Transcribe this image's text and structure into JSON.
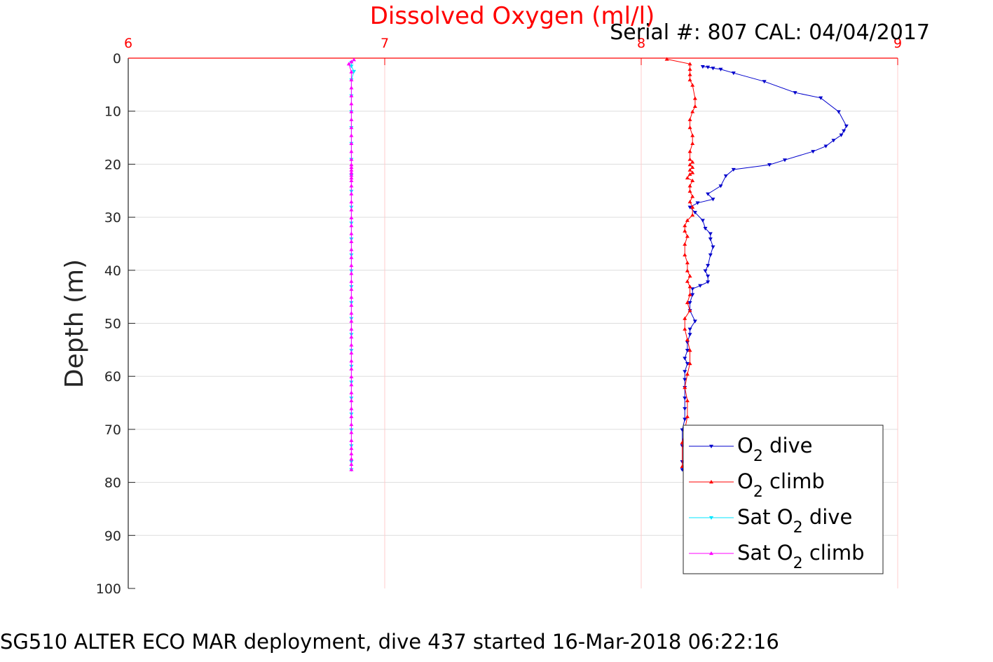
{
  "chart_data": {
    "type": "line",
    "title": "Dissolved Oxygen (ml/l)",
    "subtitle": "Serial #: 807  CAL: 04/04/2017",
    "ylabel": "Depth (m)",
    "footer": "SG510 ALTER ECO MAR deployment, dive 437 started 16-Mar-2018 06:22:16",
    "xlim": [
      6,
      9
    ],
    "ylim": [
      0,
      100
    ],
    "y_reversed": true,
    "x_axis_position": "top",
    "grid": true,
    "legend_position": "bottom-right",
    "xticks": [
      "6",
      "7",
      "8",
      "9"
    ],
    "yticks": [
      "0",
      "10",
      "20",
      "30",
      "40",
      "50",
      "60",
      "70",
      "80",
      "90",
      "100"
    ],
    "colors": {
      "title": "#ff0000",
      "x_axis": "#ff0000",
      "x_grid": "#ffcccc",
      "y_grid": "#dddddd",
      "text": "#262626"
    },
    "series": [
      {
        "name": "O2 dive",
        "legend": {
          "base": "O",
          "sub": "2",
          "post": " dive"
        },
        "color": "#0000cc",
        "marker": "triangle-down",
        "points": [
          [
            8.24,
            1.6
          ],
          [
            8.26,
            1.7
          ],
          [
            8.28,
            1.9
          ],
          [
            8.31,
            2.1
          ],
          [
            8.36,
            2.8
          ],
          [
            8.48,
            4.4
          ],
          [
            8.6,
            6.5
          ],
          [
            8.7,
            7.5
          ],
          [
            8.77,
            10.1
          ],
          [
            8.8,
            12.8
          ],
          [
            8.79,
            13.7
          ],
          [
            8.78,
            14.5
          ],
          [
            8.75,
            15.5
          ],
          [
            8.72,
            16.6
          ],
          [
            8.67,
            17.6
          ],
          [
            8.56,
            19.2
          ],
          [
            8.5,
            20.1
          ],
          [
            8.36,
            21.0
          ],
          [
            8.33,
            22.2
          ],
          [
            8.31,
            24.1
          ],
          [
            8.26,
            25.6
          ],
          [
            8.28,
            26.6
          ],
          [
            8.22,
            27.3
          ],
          [
            8.19,
            28.1
          ],
          [
            8.21,
            29.1
          ],
          [
            8.24,
            30.6
          ],
          [
            8.25,
            32.1
          ],
          [
            8.27,
            33.1
          ],
          [
            8.27,
            34.1
          ],
          [
            8.28,
            35.6
          ],
          [
            8.27,
            37.1
          ],
          [
            8.26,
            39.1
          ],
          [
            8.25,
            40.1
          ],
          [
            8.26,
            41.1
          ],
          [
            8.26,
            42.2
          ],
          [
            8.23,
            42.9
          ],
          [
            8.2,
            43.5
          ],
          [
            8.2,
            44.6
          ],
          [
            8.19,
            46.1
          ],
          [
            8.19,
            47.6
          ],
          [
            8.21,
            49.6
          ],
          [
            8.19,
            51.1
          ],
          [
            8.19,
            52.1
          ],
          [
            8.18,
            53.6
          ],
          [
            8.18,
            55.1
          ],
          [
            8.17,
            56.6
          ],
          [
            8.18,
            57.6
          ],
          [
            8.17,
            59.1
          ],
          [
            8.17,
            60.6
          ],
          [
            8.17,
            62.1
          ],
          [
            8.17,
            64.1
          ],
          [
            8.17,
            66.1
          ],
          [
            8.17,
            68.1
          ],
          [
            8.16,
            70.1
          ],
          [
            8.16,
            73.1
          ],
          [
            8.16,
            76.1
          ],
          [
            8.16,
            77.6
          ]
        ]
      },
      {
        "name": "O2 climb",
        "legend": {
          "base": "O",
          "sub": "2",
          "post": " climb"
        },
        "color": "#ff0000",
        "marker": "triangle-up",
        "points": [
          [
            8.16,
            77.0
          ],
          [
            8.16,
            72.5
          ],
          [
            8.17,
            70.1
          ],
          [
            8.18,
            67.6
          ],
          [
            8.18,
            64.6
          ],
          [
            8.17,
            62.1
          ],
          [
            8.18,
            59.6
          ],
          [
            8.19,
            57.6
          ],
          [
            8.19,
            55.1
          ],
          [
            8.18,
            53.1
          ],
          [
            8.17,
            51.1
          ],
          [
            8.17,
            49.1
          ],
          [
            8.19,
            47.6
          ],
          [
            8.18,
            46.1
          ],
          [
            8.19,
            44.6
          ],
          [
            8.19,
            43.1
          ],
          [
            8.18,
            42.1
          ],
          [
            8.19,
            41.1
          ],
          [
            8.18,
            40.1
          ],
          [
            8.18,
            38.6
          ],
          [
            8.17,
            37.1
          ],
          [
            8.17,
            35.1
          ],
          [
            8.18,
            33.6
          ],
          [
            8.17,
            32.6
          ],
          [
            8.17,
            31.6
          ],
          [
            8.18,
            30.6
          ],
          [
            8.2,
            29.6
          ],
          [
            8.2,
            28.1
          ],
          [
            8.19,
            27.1
          ],
          [
            8.2,
            26.1
          ],
          [
            8.19,
            25.1
          ],
          [
            8.19,
            24.1
          ],
          [
            8.2,
            23.1
          ],
          [
            8.18,
            22.6
          ],
          [
            8.19,
            21.9
          ],
          [
            8.2,
            21.6
          ],
          [
            8.19,
            21.1
          ],
          [
            8.2,
            20.6
          ],
          [
            8.19,
            20.1
          ],
          [
            8.2,
            19.6
          ],
          [
            8.19,
            19.1
          ],
          [
            8.19,
            17.6
          ],
          [
            8.2,
            16.1
          ],
          [
            8.2,
            14.6
          ],
          [
            8.19,
            13.1
          ],
          [
            8.19,
            11.6
          ],
          [
            8.2,
            10.1
          ],
          [
            8.21,
            9.1
          ],
          [
            8.21,
            7.6
          ],
          [
            8.2,
            5.1
          ],
          [
            8.19,
            4.1
          ],
          [
            8.19,
            3.1
          ],
          [
            8.19,
            2.1
          ],
          [
            8.19,
            1.1
          ],
          [
            8.1,
            0.2
          ]
        ]
      },
      {
        "name": "Sat O2 dive",
        "legend": {
          "base": "Sat O",
          "sub": "2",
          "post": " dive"
        },
        "color": "#00e5ff",
        "marker": "triangle-down",
        "points": [
          [
            6.87,
            0.8
          ],
          [
            6.87,
            1.5
          ],
          [
            6.88,
            2.5
          ],
          [
            6.87,
            4.1
          ],
          [
            6.87,
            7.1
          ],
          [
            6.87,
            10.1
          ],
          [
            6.87,
            13.1
          ],
          [
            6.87,
            16.1
          ],
          [
            6.87,
            19.1
          ],
          [
            6.87,
            22.1
          ],
          [
            6.87,
            25.1
          ],
          [
            6.87,
            28.1
          ],
          [
            6.87,
            31.1
          ],
          [
            6.87,
            34.1
          ],
          [
            6.87,
            37.1
          ],
          [
            6.87,
            40.1
          ],
          [
            6.87,
            43.1
          ],
          [
            6.87,
            46.1
          ],
          [
            6.87,
            49.1
          ],
          [
            6.87,
            52.1
          ],
          [
            6.87,
            55.1
          ],
          [
            6.87,
            58.1
          ],
          [
            6.87,
            61.1
          ],
          [
            6.87,
            64.1
          ],
          [
            6.87,
            67.1
          ],
          [
            6.87,
            70.1
          ],
          [
            6.87,
            73.1
          ],
          [
            6.87,
            76.1
          ],
          [
            6.87,
            77.6
          ]
        ]
      },
      {
        "name": "Sat O2 climb",
        "legend": {
          "base": "Sat O",
          "sub": "2",
          "post": " climb"
        },
        "color": "#ff00ff",
        "marker": "triangle-up",
        "points": [
          [
            6.87,
            77.6
          ],
          [
            6.87,
            76.6
          ],
          [
            6.87,
            75.6
          ],
          [
            6.87,
            74.6
          ],
          [
            6.87,
            73.6
          ],
          [
            6.87,
            72.1
          ],
          [
            6.87,
            70.6
          ],
          [
            6.87,
            69.1
          ],
          [
            6.87,
            67.6
          ],
          [
            6.87,
            66.1
          ],
          [
            6.87,
            64.6
          ],
          [
            6.87,
            63.1
          ],
          [
            6.87,
            61.6
          ],
          [
            6.87,
            60.1
          ],
          [
            6.87,
            58.6
          ],
          [
            6.87,
            57.1
          ],
          [
            6.87,
            55.6
          ],
          [
            6.87,
            54.1
          ],
          [
            6.87,
            52.6
          ],
          [
            6.87,
            51.1
          ],
          [
            6.87,
            49.6
          ],
          [
            6.87,
            48.1
          ],
          [
            6.87,
            46.6
          ],
          [
            6.87,
            45.1
          ],
          [
            6.87,
            43.6
          ],
          [
            6.87,
            42.1
          ],
          [
            6.87,
            40.6
          ],
          [
            6.87,
            39.1
          ],
          [
            6.87,
            37.6
          ],
          [
            6.87,
            36.1
          ],
          [
            6.87,
            34.6
          ],
          [
            6.87,
            33.1
          ],
          [
            6.87,
            31.6
          ],
          [
            6.87,
            30.1
          ],
          [
            6.87,
            28.6
          ],
          [
            6.87,
            27.1
          ],
          [
            6.87,
            25.6
          ],
          [
            6.87,
            24.1
          ],
          [
            6.87,
            23.1
          ],
          [
            6.87,
            22.6
          ],
          [
            6.87,
            22.1
          ],
          [
            6.87,
            21.6
          ],
          [
            6.87,
            21.1
          ],
          [
            6.87,
            20.6
          ],
          [
            6.87,
            20.1
          ],
          [
            6.87,
            19.1
          ],
          [
            6.87,
            17.6
          ],
          [
            6.87,
            16.1
          ],
          [
            6.87,
            14.6
          ],
          [
            6.87,
            13.1
          ],
          [
            6.87,
            11.6
          ],
          [
            6.87,
            10.1
          ],
          [
            6.87,
            8.6
          ],
          [
            6.87,
            7.1
          ],
          [
            6.87,
            5.6
          ],
          [
            6.87,
            4.1
          ],
          [
            6.87,
            2.6
          ],
          [
            6.86,
            1.1
          ],
          [
            6.87,
            0.7
          ],
          [
            6.88,
            0.3
          ]
        ]
      }
    ]
  }
}
